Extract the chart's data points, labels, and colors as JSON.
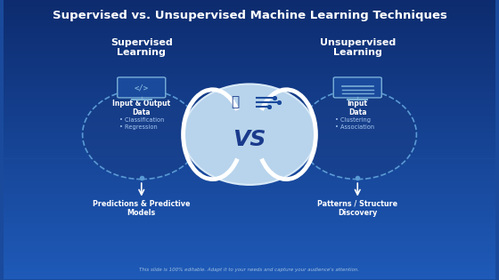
{
  "title": "Supervised vs. Unsupervised Machine Learning Techniques",
  "title_fontsize": 9.5,
  "title_color": "#ffffff",
  "bg_color_top": "#0d2b6e",
  "bg_color_bottom": "#1a5ab8",
  "left_heading": "Supervised\nLearning",
  "right_heading": "Unsupervised\nLearning",
  "vs_text": "VS",
  "left_label_top": "Input & Output\nData",
  "left_bullets": [
    "Classification",
    "Regression"
  ],
  "left_label_bottom": "Predictions & Predictive\nModels",
  "right_label_top": "Input\nData",
  "right_bullets": [
    "Clustering",
    "Association"
  ],
  "right_label_bottom": "Patterns / Structure\nDiscovery",
  "footer": "This slide is 100% editable. Adapt it to your needs and capture your audience's attention.",
  "center_fill": "#b8d4ec",
  "small_oval_fill": "#1a4a9c",
  "small_oval_edge": "#7ab0d8",
  "white": "#ffffff",
  "dark_blue_text": "#1a3a8c",
  "bullet_color": "#a8c8f0"
}
